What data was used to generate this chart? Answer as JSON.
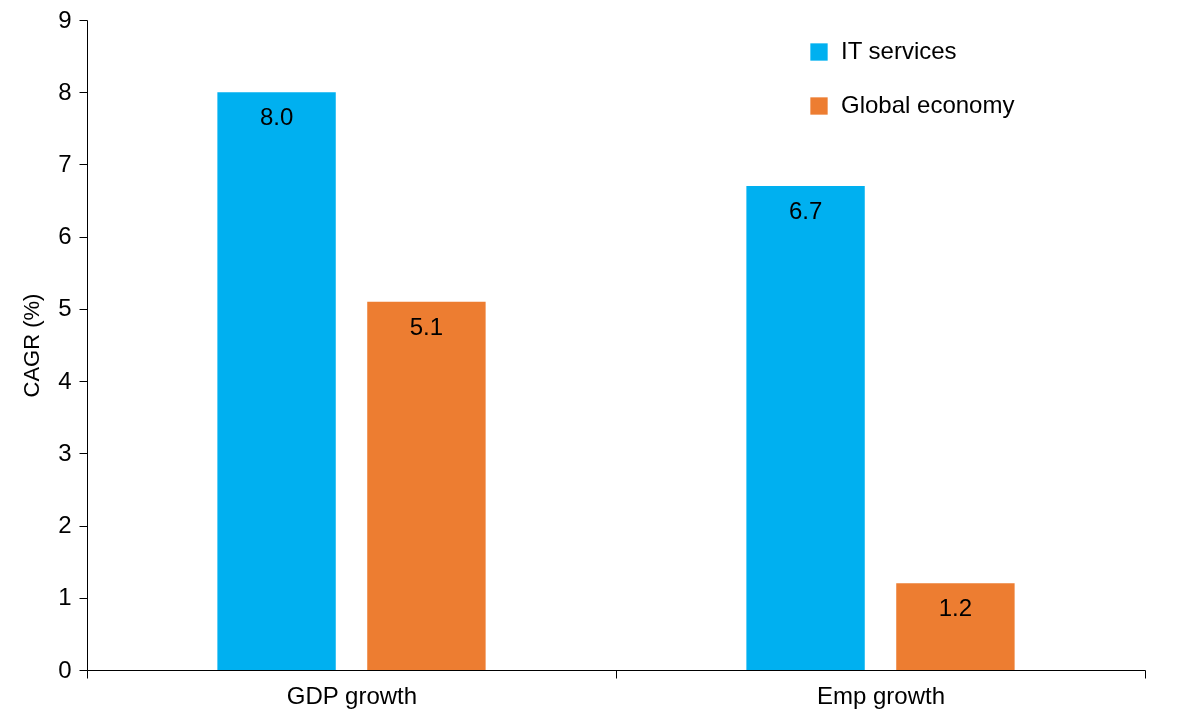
{
  "chart_data": {
    "type": "bar",
    "ylabel": "CAGR (%)",
    "categories": [
      "GDP growth",
      "Emp growth"
    ],
    "series": [
      {
        "name": "IT services",
        "color": "#00b0f0",
        "values": [
          8.0,
          6.7
        ],
        "value_labels": [
          "8.0",
          "6.7"
        ]
      },
      {
        "name": "Global economy",
        "color": "#ed7d31",
        "values": [
          5.1,
          1.2
        ],
        "value_labels": [
          "5.1",
          "1.2"
        ]
      }
    ],
    "ylim": [
      0,
      9
    ],
    "yticks": [
      0,
      1,
      2,
      3,
      4,
      5,
      6,
      7,
      8,
      9
    ],
    "grid": false,
    "legend": "top right"
  }
}
